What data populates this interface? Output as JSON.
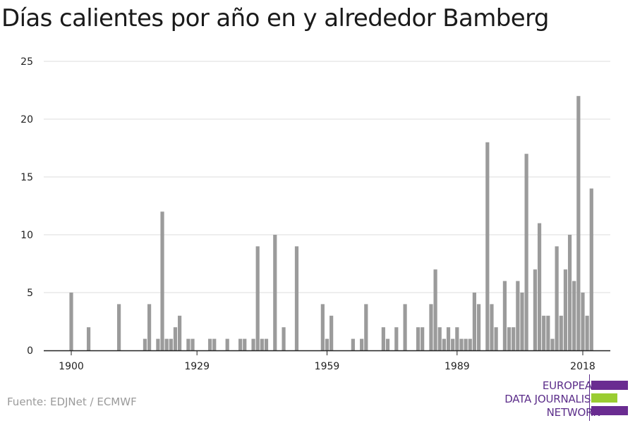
{
  "title": "Días calientes por año en y alrededor Bamberg",
  "source": "Fuente: EDJNet / ECMWF",
  "logo": {
    "lines": [
      "EUROPEAN",
      "DATA JOURNALISM",
      "NETWORK"
    ],
    "colors": {
      "purple": "#6a2c91",
      "green": "#9acd32"
    }
  },
  "colors": {
    "bar": "#9b9b9b",
    "grid": "#dcdcdc",
    "axis": "#222222"
  },
  "chart_data": {
    "type": "bar",
    "title": "Días calientes por año en y alrededor Bamberg",
    "xlabel": "",
    "ylabel": "",
    "ylim": [
      0,
      25
    ],
    "y_ticks": [
      0,
      5,
      10,
      15,
      20,
      25
    ],
    "x_ticks": [
      1900,
      1929,
      1959,
      1989,
      2018
    ],
    "x_range": [
      1900,
      2018
    ],
    "grid": true,
    "series": [
      {
        "values": [
          {
            "x": 1900,
            "y": 5
          },
          {
            "x": 1904,
            "y": 2
          },
          {
            "x": 1911,
            "y": 4
          },
          {
            "x": 1917,
            "y": 1
          },
          {
            "x": 1918,
            "y": 4
          },
          {
            "x": 1920,
            "y": 1
          },
          {
            "x": 1921,
            "y": 12
          },
          {
            "x": 1922,
            "y": 1
          },
          {
            "x": 1923,
            "y": 1
          },
          {
            "x": 1924,
            "y": 2
          },
          {
            "x": 1925,
            "y": 3
          },
          {
            "x": 1927,
            "y": 1
          },
          {
            "x": 1928,
            "y": 1
          },
          {
            "x": 1932,
            "y": 1
          },
          {
            "x": 1933,
            "y": 1
          },
          {
            "x": 1936,
            "y": 1
          },
          {
            "x": 1939,
            "y": 1
          },
          {
            "x": 1940,
            "y": 1
          },
          {
            "x": 1942,
            "y": 1
          },
          {
            "x": 1943,
            "y": 9
          },
          {
            "x": 1944,
            "y": 1
          },
          {
            "x": 1945,
            "y": 1
          },
          {
            "x": 1947,
            "y": 10
          },
          {
            "x": 1949,
            "y": 2
          },
          {
            "x": 1952,
            "y": 9
          },
          {
            "x": 1958,
            "y": 4
          },
          {
            "x": 1959,
            "y": 1
          },
          {
            "x": 1960,
            "y": 3
          },
          {
            "x": 1965,
            "y": 1
          },
          {
            "x": 1967,
            "y": 1
          },
          {
            "x": 1968,
            "y": 4
          },
          {
            "x": 1972,
            "y": 2
          },
          {
            "x": 1973,
            "y": 1
          },
          {
            "x": 1975,
            "y": 2
          },
          {
            "x": 1977,
            "y": 4
          },
          {
            "x": 1980,
            "y": 2
          },
          {
            "x": 1981,
            "y": 2
          },
          {
            "x": 1983,
            "y": 4
          },
          {
            "x": 1984,
            "y": 7
          },
          {
            "x": 1985,
            "y": 2
          },
          {
            "x": 1986,
            "y": 1
          },
          {
            "x": 1987,
            "y": 2
          },
          {
            "x": 1988,
            "y": 1
          },
          {
            "x": 1989,
            "y": 2
          },
          {
            "x": 1990,
            "y": 1
          },
          {
            "x": 1991,
            "y": 1
          },
          {
            "x": 1992,
            "y": 1
          },
          {
            "x": 1993,
            "y": 5
          },
          {
            "x": 1994,
            "y": 4
          },
          {
            "x": 1996,
            "y": 18
          },
          {
            "x": 1997,
            "y": 4
          },
          {
            "x": 1998,
            "y": 2
          },
          {
            "x": 2000,
            "y": 6
          },
          {
            "x": 2001,
            "y": 2
          },
          {
            "x": 2002,
            "y": 2
          },
          {
            "x": 2003,
            "y": 6
          },
          {
            "x": 2004,
            "y": 5
          },
          {
            "x": 2005,
            "y": 17
          },
          {
            "x": 2007,
            "y": 7
          },
          {
            "x": 2008,
            "y": 11
          },
          {
            "x": 2009,
            "y": 3
          },
          {
            "x": 2010,
            "y": 3
          },
          {
            "x": 2011,
            "y": 1
          },
          {
            "x": 2012,
            "y": 9
          },
          {
            "x": 2013,
            "y": 3
          },
          {
            "x": 2014,
            "y": 7
          },
          {
            "x": 2015,
            "y": 10
          },
          {
            "x": 2016,
            "y": 6
          },
          {
            "x": 2017,
            "y": 22
          },
          {
            "x": 2018,
            "y": 5
          },
          {
            "x": 2019,
            "y": 3
          },
          {
            "x": 2020,
            "y": 14
          }
        ]
      }
    ]
  }
}
